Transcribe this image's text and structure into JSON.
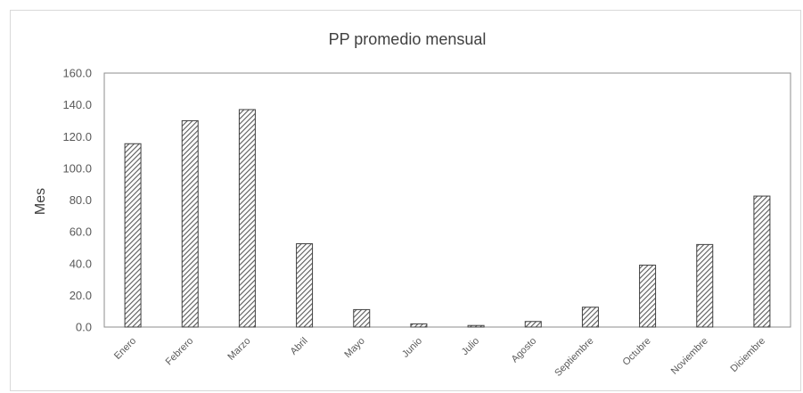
{
  "chart_data": {
    "type": "bar",
    "title": "PP promedio mensual",
    "ylabel": "Mes",
    "xlabel": "",
    "categories": [
      "Enero",
      "Febrero",
      "Marzo",
      "Abril",
      "Mayo",
      "Junio",
      "Julio",
      "Agosto",
      "Septiembre",
      "Octubre",
      "Noviembre",
      "Diciembre"
    ],
    "values": [
      115.5,
      130.0,
      137.0,
      52.5,
      11.0,
      2.0,
      1.0,
      3.5,
      12.5,
      39.0,
      52.0,
      82.5
    ],
    "ylim": [
      0,
      160
    ],
    "yticks": [
      "0.0",
      "20.0",
      "40.0",
      "60.0",
      "80.0",
      "100.0",
      "120.0",
      "140.0",
      "160.0"
    ],
    "grid": false,
    "bar_pattern": "diagonal-hatch",
    "colors": {
      "bar_stroke": "#404040",
      "hatch": "#595959",
      "axis": "#7f7f7f"
    }
  }
}
